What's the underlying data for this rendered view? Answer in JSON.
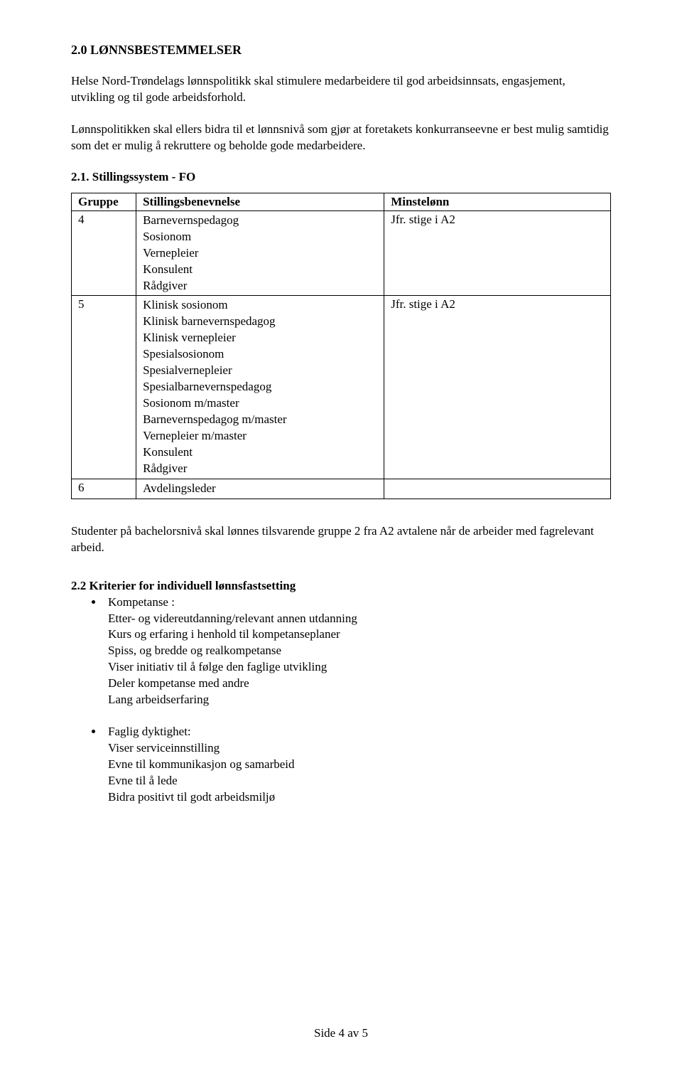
{
  "section_title": "2.0 LØNNSBESTEMMELSER",
  "intro_para": "Helse Nord-Trøndelags lønnspolitikk skal stimulere medarbeidere til god arbeidsinnsats, engasjement, utvikling og til gode arbeidsforhold.",
  "second_para": "Lønnspolitikken skal ellers bidra til et lønnsnivå som gjør at foretakets konkurranseevne er best mulig samtidig som det er mulig å rekruttere og beholde gode medarbeidere.",
  "sub_title_21": "2.1. Stillingssystem - FO",
  "table": {
    "headers": {
      "gruppe": "Gruppe",
      "stilling": "Stillingsbenevnelse",
      "minste": "Minstelønn"
    },
    "rows": [
      {
        "gruppe": "4",
        "stilling": "Barnevernspedagog\nSosionom\nVernepleier\nKonsulent\nRådgiver",
        "minste": "Jfr. stige i A2"
      },
      {
        "gruppe": "5",
        "stilling": "Klinisk sosionom\nKlinisk barnevernspedagog\nKlinisk vernepleier\nSpesialsosionom\nSpesialvernepleier\nSpesialbarnevernspedagog\nSosionom m/master\nBarnevernspedagog m/master\nVernepleier m/master\nKonsulent\nRådgiver",
        "minste": "Jfr. stige i A2"
      },
      {
        "gruppe": "6",
        "stilling": "Avdelingsleder",
        "minste": ""
      }
    ],
    "border_color": "#000000",
    "font_size": 17
  },
  "below_table_para": "Studenter på bachelorsnivå skal lønnes tilsvarende gruppe 2 fra A2 avtalene når de arbeider med fagrelevant arbeid.",
  "sub_title_22": "2.2 Kriterier for individuell lønnsfastsetting",
  "bullets": [
    {
      "lead": "Kompetanse :",
      "lines": "Etter- og videreutdanning/relevant annen utdanning\nKurs og erfaring i henhold til kompetanseplaner\nSpiss, og bredde  og realkompetanse\nViser initiativ til å følge den faglige utvikling\nDeler kompetanse med andre\nLang arbeidserfaring"
    },
    {
      "lead": "Faglig dyktighet:",
      "lines": "Viser serviceinnstilling\nEvne til kommunikasjon og samarbeid\nEvne til å lede\nBidra positivt til godt arbeidsmiljø"
    }
  ],
  "footer": "Side 4 av 5",
  "colors": {
    "text": "#000000",
    "background": "#ffffff",
    "table_border": "#000000"
  },
  "typography": {
    "font_family": "Times New Roman",
    "body_size": 17,
    "title_size": 18
  }
}
